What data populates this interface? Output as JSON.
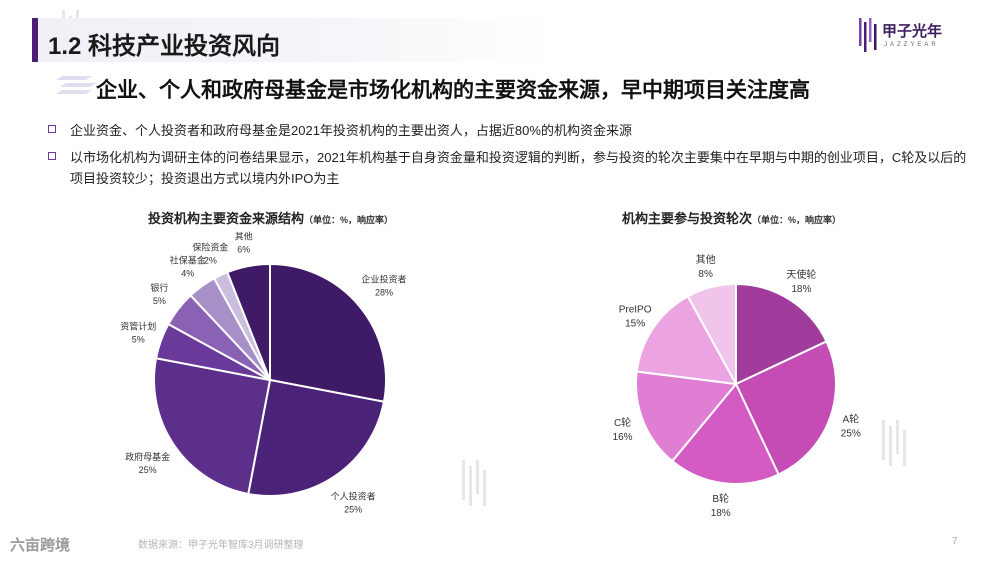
{
  "header": {
    "title": "1.2 科技产业投资风向",
    "logo_text": "甲子光年",
    "logo_sub": "JAZZYEAR"
  },
  "subtitle": "企业、个人和政府母基金是市场化机构的主要资金来源，早中期项目关注度高",
  "bullets": [
    "企业资金、个人投资者和政府母基金是2021年投资机构的主要出资人，占据近80%的机构资金来源",
    "以市场化机构为调研主体的问卷结果显示，2021年机构基于自身资金量和投资逻辑的判断，参与投资的轮次主要集中在早期与中期的创业项目，C轮及以后的项目投资较少；投资退出方式以境内外IPO为主"
  ],
  "footer": {
    "logo": "六亩跨境",
    "source": "数据来源：甲子光年智库3月调研整理",
    "page": "7"
  },
  "colors": {
    "accent": "#4b1f78",
    "left_palette": [
      "#3f1a66",
      "#4a2378",
      "#5b2f8a",
      "#6a3a9b",
      "#8a62b5",
      "#a78fc8",
      "#cbbddd"
    ],
    "right_palette": [
      "#a13c9c",
      "#c44cb4",
      "#d35bc3",
      "#e07ed4",
      "#eba3e2",
      "#f1c4eb"
    ]
  },
  "chart_data": [
    {
      "type": "pie",
      "title": "投资机构主要资金来源结构",
      "unit_note": "（单位：%，响应率）",
      "slices": [
        {
          "label": "企业投资者",
          "value": 28
        },
        {
          "label": "个人投资者",
          "value": 25
        },
        {
          "label": "政府母基金",
          "value": 25
        },
        {
          "label": "资管计划",
          "value": 5
        },
        {
          "label": "银行",
          "value": 5
        },
        {
          "label": "社保基金",
          "value": 4
        },
        {
          "label": "保险资金",
          "value": 2
        },
        {
          "label": "其他",
          "value": 6
        }
      ]
    },
    {
      "type": "pie",
      "title": "机构主要参与投资轮次",
      "unit_note": "（单位：%，响应率）",
      "slices": [
        {
          "label": "天使轮",
          "value": 18
        },
        {
          "label": "A轮",
          "value": 25
        },
        {
          "label": "B轮",
          "value": 18
        },
        {
          "label": "C轮",
          "value": 16
        },
        {
          "label": "PreIPO",
          "value": 15
        },
        {
          "label": "其他",
          "value": 8
        }
      ]
    }
  ]
}
